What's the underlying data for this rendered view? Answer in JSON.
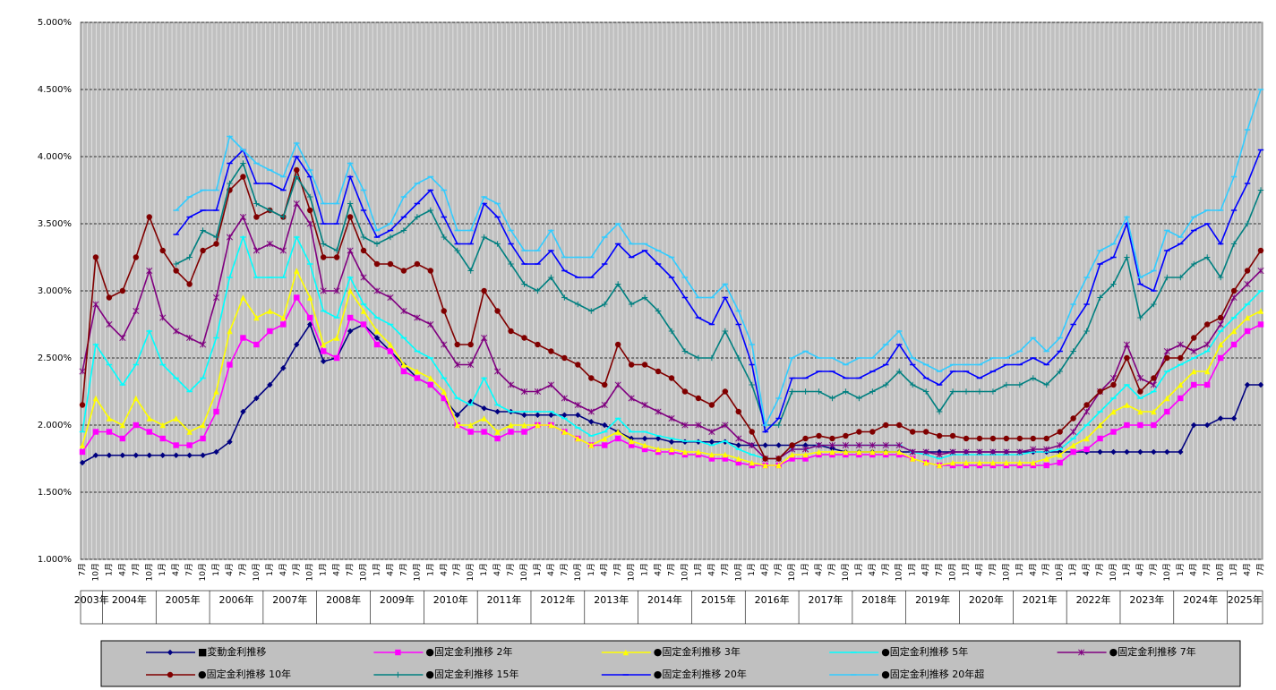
{
  "chart_data": {
    "type": "line",
    "categories": [
      "7月",
      "10月",
      "1月",
      "4月",
      "7月",
      "10月",
      "1月",
      "4月",
      "7月",
      "10月",
      "1月",
      "4月",
      "7月",
      "10月",
      "1月",
      "4月",
      "7月",
      "10月",
      "1月",
      "4月",
      "7月",
      "10月",
      "1月",
      "4月",
      "7月",
      "10月",
      "1月",
      "4月",
      "7月",
      "10月",
      "1月",
      "4月",
      "7月",
      "10月",
      "1月",
      "4月",
      "7月",
      "10月",
      "1月",
      "4月",
      "7月",
      "10月",
      "1月",
      "4月",
      "7月",
      "10月",
      "1月",
      "4月",
      "7月",
      "10月",
      "1月",
      "4月",
      "7月",
      "10月",
      "1月",
      "4月",
      "7月",
      "10月",
      "1月",
      "4月",
      "7月",
      "10月",
      "1月",
      "4月",
      "7月",
      "10月",
      "1月",
      "4月",
      "7月",
      "10月",
      "1月",
      "4月",
      "7月",
      "10月",
      "1月",
      "4月",
      "7月",
      "10月",
      "1月",
      "4月",
      "7月",
      "10月",
      "1月",
      "4月",
      "7月",
      "10月",
      "1月",
      "4月",
      "7月"
    ],
    "years": [
      "2003年",
      "2004年",
      "2005年",
      "2006年",
      "2007年",
      "2008年",
      "2009年",
      "2010年",
      "2011年",
      "2012年",
      "2013年",
      "2014年",
      "2015年",
      "2016年",
      "2017年",
      "2018年",
      "2019年",
      "2020年",
      "2021年",
      "2022年",
      "2023年",
      "2024年",
      "2025年"
    ],
    "ylim": [
      1,
      5
    ],
    "yticks": [
      {
        "value": 1,
        "label": "1.000%"
      },
      {
        "value": 1.5,
        "label": "1.500%"
      },
      {
        "value": 2,
        "label": "2.000%"
      },
      {
        "value": 2.5,
        "label": "2.500%"
      },
      {
        "value": 3,
        "label": "3.000%"
      },
      {
        "value": 3.5,
        "label": "3.500%"
      },
      {
        "value": 4,
        "label": "4.000%"
      },
      {
        "value": 4.5,
        "label": "4.500%"
      },
      {
        "value": 5,
        "label": "5.000%"
      }
    ],
    "grid": true,
    "series": [
      {
        "name": "■変動金利推移",
        "color": "#000080",
        "marker": "diamond",
        "values": [
          1.72,
          1.775,
          1.775,
          1.775,
          1.775,
          1.775,
          1.775,
          1.775,
          1.775,
          1.775,
          1.8,
          1.875,
          2.1,
          2.2,
          2.3,
          2.425,
          2.6,
          2.75,
          2.475,
          2.5,
          2.7,
          2.75,
          2.65,
          2.55,
          2.45,
          2.35,
          2.3,
          2.2,
          2.075,
          2.175,
          2.125,
          2.1,
          2.1,
          2.075,
          2.075,
          2.075,
          2.075,
          2.075,
          2.025,
          2.0,
          1.95,
          1.9,
          1.9,
          1.9,
          1.875,
          1.875,
          1.875,
          1.875,
          1.875,
          1.85,
          1.85,
          1.85,
          1.85,
          1.85,
          1.85,
          1.85,
          1.825,
          1.8,
          1.8,
          1.8,
          1.8,
          1.8,
          1.8,
          1.8,
          1.8,
          1.8,
          1.8,
          1.8,
          1.8,
          1.8,
          1.8,
          1.8,
          1.8,
          1.8,
          1.8,
          1.8,
          1.8,
          1.8,
          1.8,
          1.8,
          1.8,
          1.8,
          1.8,
          2.0,
          2.0,
          2.05,
          2.05,
          2.3,
          2.3
        ]
      },
      {
        "name": "●固定金利推移 2年",
        "color": "#ff00ff",
        "marker": "square",
        "values": [
          1.8,
          1.95,
          1.95,
          1.9,
          2.0,
          1.95,
          1.9,
          1.85,
          1.85,
          1.9,
          2.1,
          2.45,
          2.65,
          2.6,
          2.7,
          2.75,
          2.95,
          2.8,
          2.55,
          2.5,
          2.8,
          2.75,
          2.6,
          2.55,
          2.4,
          2.35,
          2.3,
          2.2,
          2.0,
          1.95,
          1.95,
          1.9,
          1.95,
          1.95,
          2.0,
          2.0,
          1.95,
          1.9,
          1.85,
          1.85,
          1.9,
          1.85,
          1.82,
          1.8,
          1.8,
          1.78,
          1.78,
          1.75,
          1.75,
          1.72,
          1.7,
          1.7,
          1.7,
          1.75,
          1.75,
          1.78,
          1.78,
          1.78,
          1.78,
          1.78,
          1.78,
          1.78,
          1.75,
          1.72,
          1.7,
          1.7,
          1.7,
          1.7,
          1.7,
          1.7,
          1.7,
          1.7,
          1.7,
          1.72,
          1.8,
          1.82,
          1.9,
          1.95,
          2.0,
          2.0,
          2.0,
          2.1,
          2.2,
          2.3,
          2.3,
          2.5,
          2.6,
          2.7,
          2.75
        ]
      },
      {
        "name": "●固定金利推移 3年",
        "color": "#ffff00",
        "marker": "triangle",
        "values": [
          1.85,
          2.2,
          2.05,
          2.0,
          2.2,
          2.05,
          2.0,
          2.05,
          1.95,
          2.0,
          2.25,
          2.7,
          2.95,
          2.8,
          2.85,
          2.8,
          3.15,
          2.95,
          2.6,
          2.65,
          3.0,
          2.85,
          2.7,
          2.6,
          2.45,
          2.4,
          2.35,
          2.25,
          2.0,
          2.0,
          2.05,
          1.95,
          2.0,
          2.0,
          2.0,
          2.0,
          1.95,
          1.9,
          1.85,
          1.9,
          1.95,
          1.88,
          1.85,
          1.82,
          1.82,
          1.8,
          1.8,
          1.78,
          1.78,
          1.75,
          1.72,
          1.7,
          1.7,
          1.78,
          1.78,
          1.8,
          1.8,
          1.8,
          1.8,
          1.8,
          1.8,
          1.8,
          1.75,
          1.72,
          1.7,
          1.72,
          1.72,
          1.72,
          1.72,
          1.72,
          1.72,
          1.72,
          1.75,
          1.78,
          1.85,
          1.9,
          2.0,
          2.1,
          2.15,
          2.1,
          2.1,
          2.2,
          2.3,
          2.4,
          2.4,
          2.6,
          2.7,
          2.8,
          2.85
        ]
      },
      {
        "name": "●固定金利推移 5年",
        "color": "#00ffff",
        "marker": "dash",
        "values": [
          1.95,
          2.6,
          2.45,
          2.3,
          2.45,
          2.7,
          2.45,
          2.35,
          2.25,
          2.35,
          2.65,
          3.1,
          3.4,
          3.1,
          3.1,
          3.1,
          3.4,
          3.2,
          2.85,
          2.8,
          3.1,
          2.9,
          2.8,
          2.75,
          2.65,
          2.55,
          2.5,
          2.35,
          2.2,
          2.15,
          2.35,
          2.15,
          2.1,
          2.1,
          2.1,
          2.1,
          2.05,
          1.98,
          1.92,
          1.95,
          2.05,
          1.95,
          1.95,
          1.92,
          1.9,
          1.88,
          1.88,
          1.85,
          1.88,
          1.82,
          1.78,
          1.75,
          1.75,
          1.82,
          1.82,
          1.85,
          1.85,
          1.85,
          1.85,
          1.85,
          1.85,
          1.85,
          1.8,
          1.78,
          1.75,
          1.78,
          1.78,
          1.78,
          1.78,
          1.78,
          1.78,
          1.8,
          1.8,
          1.82,
          1.9,
          2.0,
          2.1,
          2.2,
          2.3,
          2.2,
          2.25,
          2.4,
          2.45,
          2.5,
          2.55,
          2.7,
          2.8,
          2.9,
          3.0
        ]
      },
      {
        "name": "●固定金利推移 7年",
        "color": "#800080",
        "marker": "asterisk",
        "values": [
          2.4,
          2.9,
          2.75,
          2.65,
          2.85,
          3.15,
          2.8,
          2.7,
          2.65,
          2.6,
          2.95,
          3.4,
          3.55,
          3.3,
          3.35,
          3.3,
          3.65,
          3.5,
          3.0,
          3.0,
          3.3,
          3.1,
          3.0,
          2.95,
          2.85,
          2.8,
          2.75,
          2.6,
          2.45,
          2.45,
          2.65,
          2.4,
          2.3,
          2.25,
          2.25,
          2.3,
          2.2,
          2.15,
          2.1,
          2.15,
          2.3,
          2.2,
          2.15,
          2.1,
          2.05,
          2.0,
          2.0,
          1.95,
          2.0,
          1.9,
          1.85,
          1.75,
          1.75,
          1.82,
          1.82,
          1.85,
          1.85,
          1.85,
          1.85,
          1.85,
          1.85,
          1.85,
          1.8,
          1.8,
          1.78,
          1.8,
          1.8,
          1.8,
          1.8,
          1.8,
          1.8,
          1.82,
          1.82,
          1.85,
          1.95,
          2.1,
          2.25,
          2.35,
          2.6,
          2.35,
          2.3,
          2.55,
          2.6,
          2.55,
          2.6,
          2.75,
          2.95,
          3.05,
          3.15
        ]
      },
      {
        "name": "●固定金利推移 10年",
        "color": "#800000",
        "marker": "circle",
        "values": [
          2.15,
          3.25,
          2.95,
          3.0,
          3.25,
          3.55,
          3.3,
          3.15,
          3.05,
          3.3,
          3.35,
          3.75,
          3.85,
          3.55,
          3.6,
          3.55,
          3.9,
          3.6,
          3.25,
          3.25,
          3.55,
          3.3,
          3.2,
          3.2,
          3.15,
          3.2,
          3.15,
          2.85,
          2.6,
          2.6,
          3.0,
          2.85,
          2.7,
          2.65,
          2.6,
          2.55,
          2.5,
          2.45,
          2.35,
          2.3,
          2.6,
          2.45,
          2.45,
          2.4,
          2.35,
          2.25,
          2.2,
          2.15,
          2.25,
          2.1,
          1.95,
          1.75,
          1.75,
          1.85,
          1.9,
          1.92,
          1.9,
          1.92,
          1.95,
          1.95,
          2.0,
          2.0,
          1.95,
          1.95,
          1.92,
          1.92,
          1.9,
          1.9,
          1.9,
          1.9,
          1.9,
          1.9,
          1.9,
          1.95,
          2.05,
          2.15,
          2.25,
          2.3,
          2.5,
          2.25,
          2.35,
          2.5,
          2.5,
          2.65,
          2.75,
          2.8,
          3.0,
          3.15,
          3.3
        ]
      },
      {
        "name": "●固定金利推移 15年",
        "color": "#008080",
        "marker": "plus",
        "values": [
          null,
          null,
          null,
          null,
          null,
          null,
          null,
          3.2,
          3.25,
          3.45,
          3.4,
          3.8,
          3.95,
          3.65,
          3.6,
          3.55,
          3.85,
          3.7,
          3.35,
          3.3,
          3.65,
          3.4,
          3.35,
          3.4,
          3.45,
          3.55,
          3.6,
          3.4,
          3.3,
          3.15,
          3.4,
          3.35,
          3.2,
          3.05,
          3.0,
          3.1,
          2.95,
          2.9,
          2.85,
          2.9,
          3.05,
          2.9,
          2.95,
          2.85,
          2.7,
          2.55,
          2.5,
          2.5,
          2.7,
          2.5,
          2.3,
          2.0,
          2.0,
          2.25,
          2.25,
          2.25,
          2.2,
          2.25,
          2.2,
          2.25,
          2.3,
          2.4,
          2.3,
          2.25,
          2.1,
          2.25,
          2.25,
          2.25,
          2.25,
          2.3,
          2.3,
          2.35,
          2.3,
          2.4,
          2.55,
          2.7,
          2.95,
          3.05,
          3.25,
          2.8,
          2.9,
          3.1,
          3.1,
          3.2,
          3.25,
          3.1,
          3.35,
          3.5,
          3.75
        ]
      },
      {
        "name": "●固定金利推移 20年",
        "color": "#0000ff",
        "marker": "dash",
        "values": [
          null,
          null,
          null,
          null,
          null,
          null,
          null,
          3.42,
          3.55,
          3.6,
          3.6,
          3.95,
          4.05,
          3.8,
          3.8,
          3.75,
          4.0,
          3.85,
          3.5,
          3.5,
          3.85,
          3.6,
          3.4,
          3.45,
          3.55,
          3.65,
          3.75,
          3.55,
          3.35,
          3.35,
          3.65,
          3.55,
          3.35,
          3.2,
          3.2,
          3.3,
          3.15,
          3.1,
          3.1,
          3.2,
          3.35,
          3.25,
          3.3,
          3.2,
          3.1,
          2.95,
          2.8,
          2.75,
          2.95,
          2.75,
          2.45,
          1.95,
          2.05,
          2.35,
          2.35,
          2.4,
          2.4,
          2.35,
          2.35,
          2.4,
          2.45,
          2.6,
          2.45,
          2.35,
          2.3,
          2.4,
          2.4,
          2.35,
          2.4,
          2.45,
          2.45,
          2.5,
          2.45,
          2.55,
          2.75,
          2.9,
          3.2,
          3.25,
          3.5,
          3.05,
          3.0,
          3.3,
          3.35,
          3.45,
          3.5,
          3.35,
          3.6,
          3.8,
          4.05
        ]
      },
      {
        "name": "●固定金利推移 20年超",
        "color": "#33ccff",
        "marker": "dash",
        "values": [
          null,
          null,
          null,
          null,
          null,
          null,
          null,
          3.6,
          3.7,
          3.75,
          3.75,
          4.15,
          4.05,
          3.95,
          3.9,
          3.85,
          4.1,
          3.9,
          3.65,
          3.65,
          3.95,
          3.75,
          3.45,
          3.5,
          3.7,
          3.8,
          3.85,
          3.75,
          3.45,
          3.45,
          3.7,
          3.65,
          3.45,
          3.3,
          3.3,
          3.45,
          3.25,
          3.25,
          3.25,
          3.4,
          3.5,
          3.35,
          3.35,
          3.3,
          3.25,
          3.1,
          2.95,
          2.95,
          3.05,
          2.85,
          2.6,
          2.0,
          2.2,
          2.5,
          2.55,
          2.5,
          2.5,
          2.45,
          2.5,
          2.5,
          2.6,
          2.7,
          2.5,
          2.45,
          2.4,
          2.45,
          2.45,
          2.45,
          2.5,
          2.5,
          2.55,
          2.65,
          2.55,
          2.65,
          2.9,
          3.1,
          3.3,
          3.35,
          3.55,
          3.1,
          3.15,
          3.45,
          3.4,
          3.55,
          3.6,
          3.6,
          3.85,
          4.2,
          4.5
        ]
      }
    ]
  }
}
